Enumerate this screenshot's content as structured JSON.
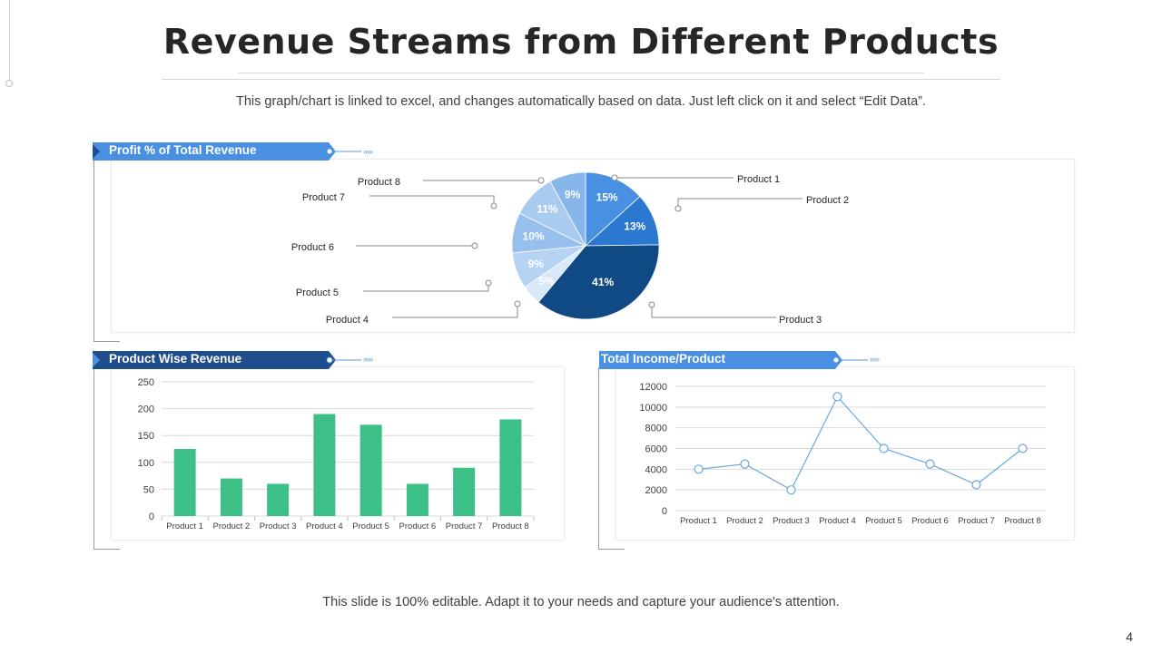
{
  "slide": {
    "title": "Revenue Streams from Different Products",
    "subtitle": "This graph/chart is linked to excel, and changes automatically based on data. Just left click on it and select “Edit Data”.",
    "footer": "This slide is 100% editable. Adapt it to your needs and capture your audience's attention.",
    "page_number": "4"
  },
  "panels": {
    "pie_title": "Profit %  of Total Revenue",
    "bar_title": "Product Wise Revenue",
    "line_title": "Total Income/Product",
    "arrows": "›››››"
  },
  "colors": {
    "banner_light": "#4a90e2",
    "banner_dark": "#1f4e8c",
    "bar": "#3dbf88",
    "line": "#6aa7dd",
    "grid": "#d9d9d9"
  },
  "chart_data": [
    {
      "type": "pie",
      "title": "Profit %  of Total Revenue",
      "categories": [
        "Product 1",
        "Product 2",
        "Product 3",
        "Product 4",
        "Product 5",
        "Product 6",
        "Product 7",
        "Product 8"
      ],
      "values": [
        15,
        13,
        41,
        5,
        9,
        10,
        11,
        9
      ],
      "value_labels": [
        "15%",
        "13%",
        "41%",
        "5%",
        "9%",
        "10%",
        "11%",
        "9%"
      ],
      "colors": [
        "#4a90e2",
        "#2a78d0",
        "#0f4a85",
        "#d9e8fa",
        "#b6d3f3",
        "#97c0ee",
        "#a9cbf0",
        "#86b6ea"
      ]
    },
    {
      "type": "bar",
      "title": "Product Wise Revenue",
      "categories": [
        "Product 1",
        "Product 2",
        "Product 3",
        "Product 4",
        "Product 5",
        "Product 6",
        "Product 7",
        "Product 8"
      ],
      "values": [
        125,
        70,
        60,
        190,
        170,
        60,
        90,
        180
      ],
      "ylim": [
        0,
        250
      ],
      "yticks": [
        "250",
        "200",
        "150",
        "100",
        "50",
        "0"
      ],
      "xlabel": "",
      "ylabel": ""
    },
    {
      "type": "line",
      "title": "Total Income/Product",
      "categories": [
        "Product 1",
        "Product 2",
        "Product 3",
        "Product 4",
        "Product 5",
        "Product 6",
        "Product 7",
        "Product 8"
      ],
      "values": [
        4000,
        4500,
        2000,
        11000,
        6000,
        4500,
        2500,
        6000
      ],
      "ylim": [
        0,
        12000
      ],
      "yticks": [
        "12000",
        "10000",
        "8000",
        "6000",
        "4000",
        "2000",
        "0"
      ],
      "xlabel": "",
      "ylabel": ""
    }
  ]
}
